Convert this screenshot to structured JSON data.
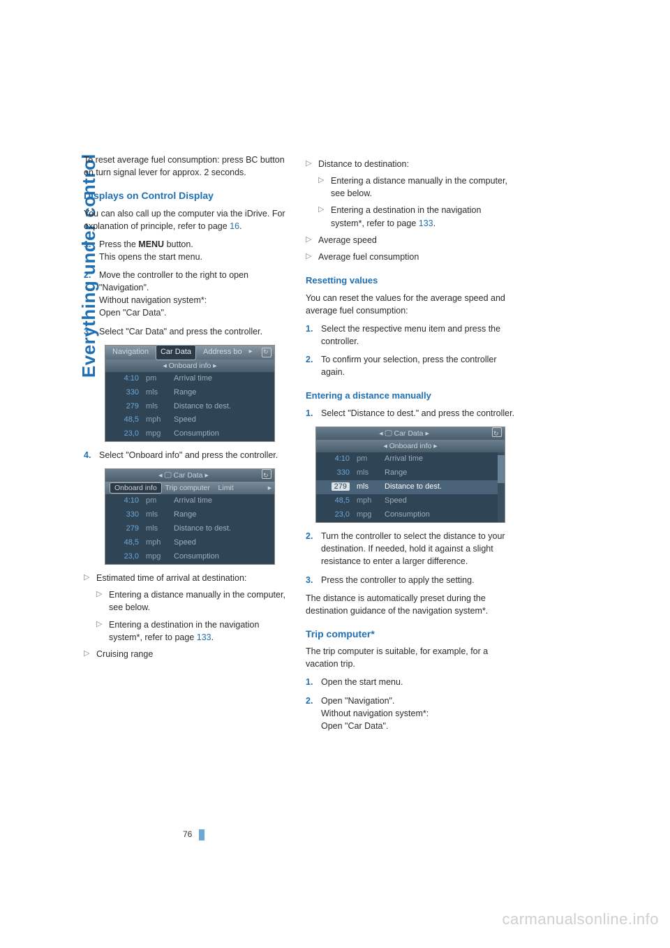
{
  "sideTitle": "Everything under control",
  "pageNumber": "76",
  "watermark": "carmanualsonline.info",
  "left": {
    "intro": "To reset average fuel consumption: press BC button on turn signal lever for approx. 2 seconds.",
    "h_displays": "Displays on Control Display",
    "displays_p1_a": "You can also call up the computer via the iDrive. For explanation of principle, refer to page ",
    "displays_p1_link": "16",
    "displays_p1_b": ".",
    "step1_a": "Press the ",
    "step1_bold": "MENU",
    "step1_b": " button.",
    "step1_line2": "This opens the start menu.",
    "step2_l1": "Move the controller to the right to open \"Navigation\".",
    "step2_l2": "Without navigation system*:",
    "step2_l3": "Open \"Car Data\".",
    "step3": "Select \"Car Data\" and press the controller.",
    "step4": "Select \"Onboard info\" and press the controller.",
    "b1": "Estimated time of arrival at destination:",
    "b1a": "Entering a distance manually in the computer, see below.",
    "b1b_a": "Entering a destination in the navigation system*, refer to page ",
    "b1b_link": "133",
    "b1b_b": ".",
    "b2": "Cruising range"
  },
  "right": {
    "b1": "Distance to destination:",
    "b1a": "Entering a distance manually in the computer, see below.",
    "b1b_a": "Entering a destination in the navigation system*, refer to page ",
    "b1b_link": "133",
    "b1b_b": ".",
    "b2": "Average speed",
    "b3": "Average fuel consumption",
    "h_reset": "Resetting values",
    "reset_p": "You can reset the values for the average speed and average fuel consumption:",
    "reset_s1": "Select the respective menu item and press the controller.",
    "reset_s2": "To confirm your selection, press the controller again.",
    "h_dist": "Entering a distance manually",
    "dist_s1": "Select \"Distance to dest.\" and press the controller.",
    "dist_s2": "Turn the controller to select the distance to your destination. If needed, hold it against a slight resistance to enter a larger difference.",
    "dist_s3": "Press the controller to apply the setting.",
    "dist_p": "The distance is automatically preset during the destination guidance of the navigation system*.",
    "h_trip": "Trip computer*",
    "trip_p": "The trip computer is suitable, for example, for a vacation trip.",
    "trip_s1": "Open the start menu.",
    "trip_s2_l1": "Open \"Navigation\".",
    "trip_s2_l2": "Without navigation system*:",
    "trip_s2_l3": "Open \"Car Data\"."
  },
  "shot1": {
    "topTabs": [
      "Navigation",
      "Car Data",
      "Address bo"
    ],
    "topSel": 1,
    "sub": "◂   Onboard info   ▸",
    "rows": [
      {
        "c1": "4:10",
        "c2": "pm",
        "c3": "Arrival time"
      },
      {
        "c1": "330",
        "c2": "mls",
        "c3": "Range"
      },
      {
        "c1": "279",
        "c2": "mls",
        "c3": "Distance to dest."
      },
      {
        "c1": "48,5",
        "c2": "mph",
        "c3": "Speed"
      },
      {
        "c1": "23,0",
        "c2": "mpg",
        "c3": "Consumption"
      }
    ]
  },
  "shot2": {
    "topCenter": "◂  🖵  Car Data  ▸",
    "subTabs": [
      "Onboard info",
      "Trip computer",
      "Limit"
    ],
    "subSel": 0,
    "rows": [
      {
        "c1": "4:10",
        "c2": "pm",
        "c3": "Arrival time"
      },
      {
        "c1": "330",
        "c2": "mls",
        "c3": "Range"
      },
      {
        "c1": "279",
        "c2": "mls",
        "c3": "Distance to dest."
      },
      {
        "c1": "48,5",
        "c2": "mph",
        "c3": "Speed"
      },
      {
        "c1": "23,0",
        "c2": "mpg",
        "c3": "Consumption"
      }
    ]
  },
  "shot3": {
    "topCenter": "◂  🖵  Car Data  ▸",
    "sub": "◂   Onboard info   ▸",
    "hlIndex": 2,
    "rows": [
      {
        "c1": "4:10",
        "c2": "pm",
        "c3": "Arrival time"
      },
      {
        "c1": "330",
        "c2": "mls",
        "c3": "Range"
      },
      {
        "c1": "279",
        "c2": "mls",
        "c3": "Distance to dest."
      },
      {
        "c1": "48,5",
        "c2": "mph",
        "c3": "Speed"
      },
      {
        "c1": "23,0",
        "c2": "mpg",
        "c3": "Consumption"
      }
    ]
  },
  "colors": {
    "heading": "#1f6fb2",
    "text": "#2a2a2a",
    "triangle": "#808080",
    "shotBg": "#2f4454",
    "shotText": "#b8c4ce",
    "shotValue": "#6fa8d8"
  }
}
